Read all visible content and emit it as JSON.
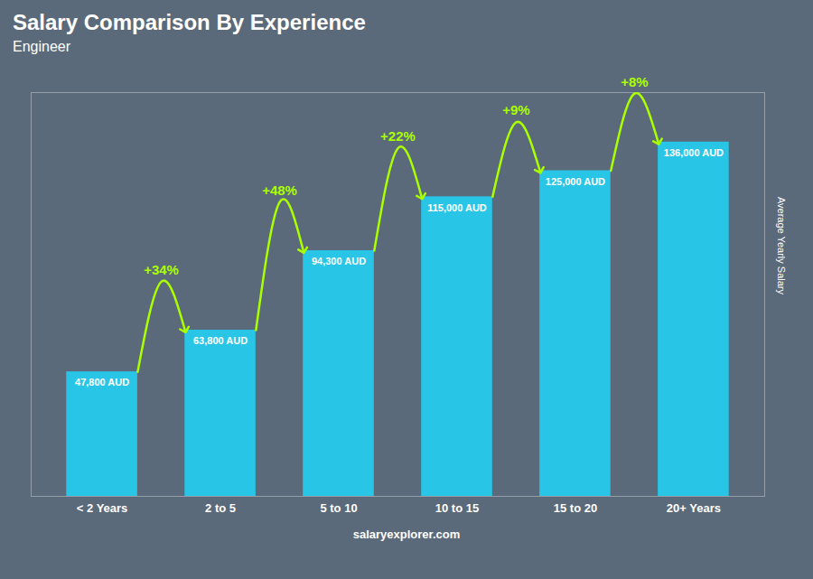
{
  "chart_data": {
    "type": "bar",
    "title": "Salary Comparison By Experience",
    "subtitle": "Engineer",
    "categories": [
      "< 2 Years",
      "2 to 5",
      "5 to 10",
      "10 to 15",
      "15 to 20",
      "20+ Years"
    ],
    "values": [
      47800,
      63800,
      94300,
      115000,
      125000,
      136000
    ],
    "value_labels": [
      "47,800 AUD",
      "63,800 AUD",
      "94,300 AUD",
      "115,000 AUD",
      "125,000 AUD",
      "136,000 AUD"
    ],
    "data_labels": true,
    "color": "#29c5e6",
    "ylabel": "Average Yearly Salary",
    "ylim": [
      0,
      155000
    ],
    "tick_labels": "x",
    "grid": false,
    "annotations": [
      {
        "text": "+34%",
        "from": "< 2 Years",
        "to": "2 to 5",
        "color": "#aaff00"
      },
      {
        "text": "+48%",
        "from": "2 to 5",
        "to": "5 to 10",
        "color": "#aaff00"
      },
      {
        "text": "+22%",
        "from": "5 to 10",
        "to": "10 to 15",
        "color": "#aaff00"
      },
      {
        "text": "+9%",
        "from": "10 to 15",
        "to": "15 to 20",
        "color": "#aaff00"
      },
      {
        "text": "+8%",
        "from": "15 to 20",
        "to": "20+ Years",
        "color": "#aaff00"
      }
    ],
    "caption": "salaryexplorer.com"
  }
}
